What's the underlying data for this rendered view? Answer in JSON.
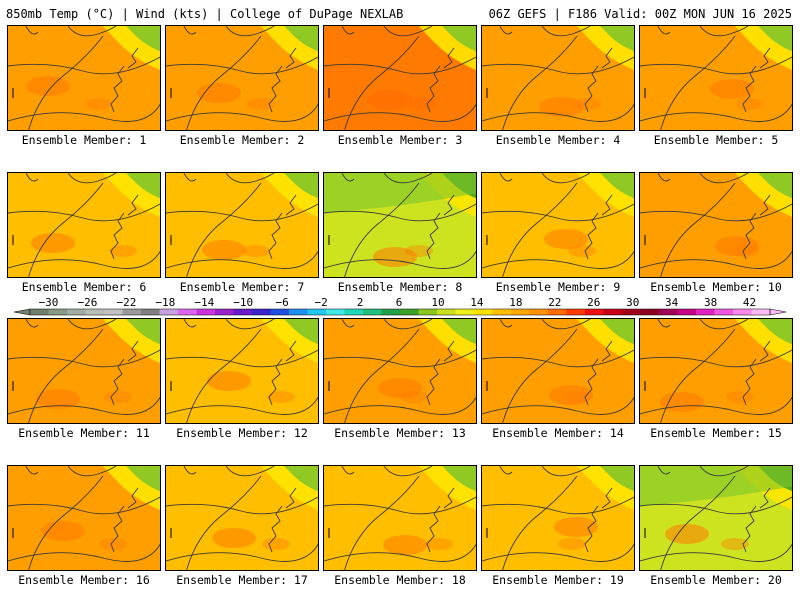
{
  "header": {
    "left": "850mb Temp (°C) | Wind (kts) | College of DuPage NEXLAB",
    "right": "06Z GEFS | F186 Valid: 00Z MON JUN 16 2025"
  },
  "panel_label_prefix": "Ensemble Member:",
  "members": [
    {
      "label": "Ensemble Member: 1",
      "number": 1,
      "dominant": "orange"
    },
    {
      "label": "Ensemble Member: 2",
      "number": 2,
      "dominant": "orange"
    },
    {
      "label": "Ensemble Member: 3",
      "number": 3,
      "dominant": "dark-orange"
    },
    {
      "label": "Ensemble Member: 4",
      "number": 4,
      "dominant": "orange"
    },
    {
      "label": "Ensemble Member: 5",
      "number": 5,
      "dominant": "orange"
    },
    {
      "label": "Ensemble Member: 6",
      "number": 6,
      "dominant": "yellow-orange"
    },
    {
      "label": "Ensemble Member: 7",
      "number": 7,
      "dominant": "yellow-orange"
    },
    {
      "label": "Ensemble Member: 8",
      "number": 8,
      "dominant": "yellow-green"
    },
    {
      "label": "Ensemble Member: 9",
      "number": 9,
      "dominant": "yellow-orange"
    },
    {
      "label": "Ensemble Member: 10",
      "number": 10,
      "dominant": "orange"
    },
    {
      "label": "Ensemble Member: 11",
      "number": 11,
      "dominant": "orange"
    },
    {
      "label": "Ensemble Member: 12",
      "number": 12,
      "dominant": "yellow-orange"
    },
    {
      "label": "Ensemble Member: 13",
      "number": 13,
      "dominant": "orange"
    },
    {
      "label": "Ensemble Member: 14",
      "number": 14,
      "dominant": "orange"
    },
    {
      "label": "Ensemble Member: 15",
      "number": 15,
      "dominant": "orange"
    },
    {
      "label": "Ensemble Member: 16",
      "number": 16,
      "dominant": "orange"
    },
    {
      "label": "Ensemble Member: 17",
      "number": 17,
      "dominant": "yellow-orange"
    },
    {
      "label": "Ensemble Member: 18",
      "number": 18,
      "dominant": "yellow-orange"
    },
    {
      "label": "Ensemble Member: 19",
      "number": 19,
      "dominant": "yellow-orange"
    },
    {
      "label": "Ensemble Member: 20",
      "number": 20,
      "dominant": "yellow-green"
    }
  ],
  "colorbar": {
    "labels": [
      "-30",
      "-26",
      "-22",
      "-18",
      "-14",
      "-10",
      "-6",
      "-2",
      "2",
      "6",
      "10",
      "14",
      "18",
      "22",
      "26",
      "30",
      "34",
      "38",
      "42"
    ],
    "colors": [
      "#707f70",
      "#8a998a",
      "#a3aca3",
      "#b9bdb9",
      "#c2c2c2",
      "#9a9a9a",
      "#808080",
      "#c8a0e0",
      "#dd66ee",
      "#cc33dd",
      "#9a22cc",
      "#6a1acc",
      "#3a22cc",
      "#1f4fe0",
      "#1f8ff0",
      "#20c8f0",
      "#40e8e8",
      "#22d8b8",
      "#22c080",
      "#22a048",
      "#3aa028",
      "#8ac820",
      "#c8e020",
      "#f0f020",
      "#ffe000",
      "#ffc000",
      "#ffa800",
      "#ff9000",
      "#ff6a00",
      "#ff3a00",
      "#ee1010",
      "#c80018",
      "#a0001a",
      "#8a0020",
      "#a00055",
      "#c80088",
      "#e022c0",
      "#f055e0",
      "#ff88ee",
      "#ffbbf6"
    ]
  },
  "palette": {
    "orange": "#ff9e00",
    "dark-orange": "#ff7a00",
    "yellow-orange": "#ffbe00",
    "yellow-green": "#cde320",
    "yellow": "#ffe600",
    "green": "#7cc42a",
    "dark-green": "#3aa028",
    "red-orange": "#ff6a00"
  }
}
